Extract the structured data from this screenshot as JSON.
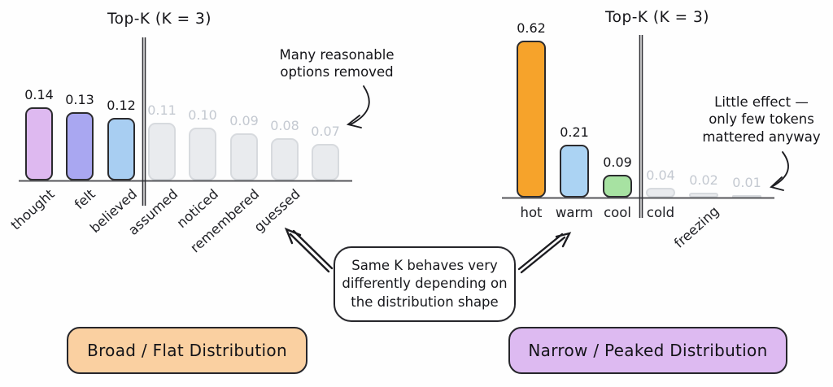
{
  "center_note": "Same K behaves very\ndifferently depending on\nthe distribution shape",
  "chart_data": [
    {
      "type": "bar",
      "title": "Top-K (K = 3)",
      "k": 3,
      "categories": [
        "thought",
        "felt",
        "believed",
        "assumed",
        "noticed",
        "remembered",
        "guessed",
        ""
      ],
      "values": [
        0.14,
        0.13,
        0.12,
        0.11,
        0.1,
        0.09,
        0.08,
        0.07
      ],
      "ylim": [
        0,
        0.15
      ],
      "grid": false,
      "kept_colors": [
        "#deb9f0",
        "#a9a7f1",
        "#a8cef2"
      ],
      "removed_fill": "#e9ebee",
      "kept_border": "#2b2b2e",
      "removed_border": "#d7dade",
      "kept_label_color": "#16161a",
      "removed_label_color": "#c4c9d1",
      "annotation": "Many reasonable\noptions removed",
      "caption": "Broad / Flat Distribution",
      "caption_fill": "#fad0a1"
    },
    {
      "type": "bar",
      "title": "Top-K (K = 3)",
      "k": 3,
      "categories": [
        "hot",
        "warm",
        "cool",
        "cold",
        "freezing",
        ""
      ],
      "values": [
        0.62,
        0.21,
        0.09,
        0.04,
        0.02,
        0.01
      ],
      "ylim": [
        0,
        0.65
      ],
      "grid": false,
      "kept_colors": [
        "#f6a32b",
        "#abd3f3",
        "#a7e2a2"
      ],
      "removed_fill": "#e9ebee",
      "kept_border": "#2b2b2e",
      "removed_border": "#d7dade",
      "kept_label_color": "#16161a",
      "removed_label_color": "#c4c9d1",
      "annotation": "Little effect —\nonly few tokens\nmattered anyway",
      "caption": "Narrow / Peaked Distribution",
      "caption_fill": "#ddbaf1"
    }
  ]
}
